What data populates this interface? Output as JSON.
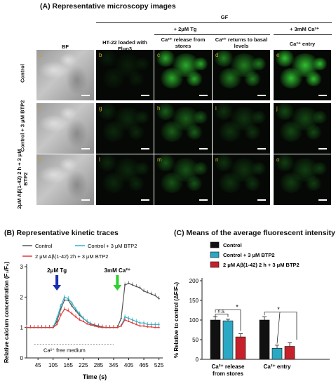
{
  "panelA": {
    "title": "(A) Representative microscopy images",
    "gf_label": "GF",
    "tg_label": "+ 2μM Tg",
    "ca_label": "+ 3mM Ca²⁺",
    "col_headers": [
      "BF",
      "HT-22 loaded with Fluo3",
      "Ca²⁺ release from stores",
      "Ca²⁺ returns to basal levels",
      "Ca²⁺ entry"
    ],
    "row_labels": [
      "Control",
      "Control + 3 μM BTP2",
      "2μM Aβ(1-42) 2 h + 3 μM BTP2"
    ],
    "tile_letters": [
      [
        "a",
        "b",
        "c",
        "d",
        "e"
      ],
      [
        "f",
        "g",
        "h",
        "i",
        "j"
      ],
      [
        "k",
        "l",
        "m",
        "n",
        "o"
      ]
    ],
    "intensity": [
      [
        0.1,
        0.75,
        0.55,
        0.85
      ],
      [
        0.15,
        0.4,
        0.2,
        0.3
      ],
      [
        0.15,
        0.35,
        0.2,
        0.25
      ]
    ],
    "colors": {
      "green": "#38e038",
      "label_gold": "#c9a227"
    }
  },
  "panelB": {
    "title": "(B) Representative kinetic traces",
    "legend": [
      "Control",
      "Control + 3 μM BTP2",
      "2 μM Aβ(1-42) 2h + 3 μM BTP2"
    ],
    "annotation_tg": "2μM Tg",
    "annotation_ca": "3mM Ca²⁺",
    "annotation_medium": "Ca²⁺ free medium",
    "chart_data": {
      "type": "line",
      "xlabel": "Time (s)",
      "ylabel": "Relative calcium concentration (F₁/F₀)",
      "xticks": [
        "45",
        "105",
        "165",
        "225",
        "285",
        "345",
        "405",
        "465",
        "525"
      ],
      "yticks": [
        "0",
        "1",
        "2",
        "3"
      ],
      "xlim": [
        0,
        540
      ],
      "ylim": [
        0,
        3
      ],
      "series": [
        {
          "name": "Control",
          "color": "#555555",
          "x": [
            0,
            15,
            30,
            45,
            60,
            75,
            90,
            105,
            120,
            135,
            150,
            165,
            180,
            195,
            210,
            225,
            240,
            255,
            270,
            285,
            300,
            315,
            330,
            345,
            360,
            375,
            390,
            405,
            420,
            435,
            450,
            465,
            480,
            495,
            510,
            525
          ],
          "y": [
            1.0,
            1.0,
            1.0,
            1.0,
            1.0,
            1.0,
            1.0,
            1.0,
            1.2,
            1.6,
            1.9,
            1.9,
            1.7,
            1.55,
            1.4,
            1.3,
            1.2,
            1.12,
            1.08,
            1.05,
            1.02,
            1.0,
            1.0,
            1.0,
            1.0,
            1.3,
            2.4,
            2.45,
            2.4,
            2.35,
            2.3,
            2.2,
            2.15,
            2.1,
            2.05,
            1.95
          ]
        },
        {
          "name": "Control + 3 μM BTP2",
          "color": "#2bb5c8",
          "x": [
            0,
            15,
            30,
            45,
            60,
            75,
            90,
            105,
            120,
            135,
            150,
            165,
            180,
            195,
            210,
            225,
            240,
            255,
            270,
            285,
            300,
            315,
            330,
            345,
            360,
            375,
            390,
            405,
            420,
            435,
            450,
            465,
            480,
            495,
            510,
            525
          ],
          "y": [
            1.0,
            1.0,
            1.0,
            1.0,
            1.0,
            1.0,
            1.0,
            1.0,
            1.3,
            1.7,
            2.0,
            1.95,
            1.8,
            1.6,
            1.45,
            1.3,
            1.2,
            1.1,
            1.05,
            1.02,
            1.0,
            1.0,
            1.0,
            1.0,
            1.0,
            1.05,
            1.35,
            1.3,
            1.25,
            1.2,
            1.15,
            1.15,
            1.1,
            1.1,
            1.1,
            1.1
          ]
        },
        {
          "name": "2 μM Aβ(1-42) 2h + 3 μM BTP2",
          "color": "#e03a3a",
          "x": [
            0,
            15,
            30,
            45,
            60,
            75,
            90,
            105,
            120,
            135,
            150,
            165,
            180,
            195,
            210,
            225,
            240,
            255,
            270,
            285,
            300,
            315,
            330,
            345,
            360,
            375,
            390,
            405,
            420,
            435,
            450,
            465,
            480,
            495,
            510,
            525
          ],
          "y": [
            1.0,
            1.0,
            1.0,
            1.0,
            1.0,
            1.0,
            1.0,
            1.0,
            1.1,
            1.4,
            1.6,
            1.55,
            1.45,
            1.35,
            1.25,
            1.2,
            1.12,
            1.08,
            1.05,
            1.02,
            1.0,
            1.0,
            1.0,
            1.0,
            1.0,
            1.05,
            1.25,
            1.2,
            1.15,
            1.1,
            1.05,
            1.05,
            1.02,
            1.02,
            1.0,
            1.0
          ]
        }
      ]
    }
  },
  "panelC": {
    "title": "(C) Means of the average fluorescent intensity",
    "legend": [
      "Control",
      "Control + 3 μM BTP2",
      "2 μM Aβ(1-42) 2 h + 3 μM BTP2"
    ],
    "sig_ns": "n.s.",
    "sig_star": "*",
    "chart_data": {
      "type": "bar",
      "ylabel": "% Relative to control (ΔF/F₀)",
      "categories": [
        "Ca²⁺ release from stores",
        "Ca²⁺ entry"
      ],
      "yticks": [
        "0",
        "50",
        "100",
        "150",
        "200"
      ],
      "ylim": [
        0,
        200
      ],
      "series": [
        {
          "name": "Control",
          "color": "#111111",
          "values": [
            100,
            100
          ],
          "errors": [
            8,
            8
          ]
        },
        {
          "name": "Control + 3 μM BTP2",
          "color": "#2ba8c4",
          "values": [
            98,
            28
          ],
          "errors": [
            4,
            8
          ]
        },
        {
          "name": "2 μM Aβ(1-42) 2 h + 3 μM BTP2",
          "color": "#c8202a",
          "values": [
            57,
            33
          ],
          "errors": [
            8,
            9
          ]
        }
      ]
    }
  }
}
